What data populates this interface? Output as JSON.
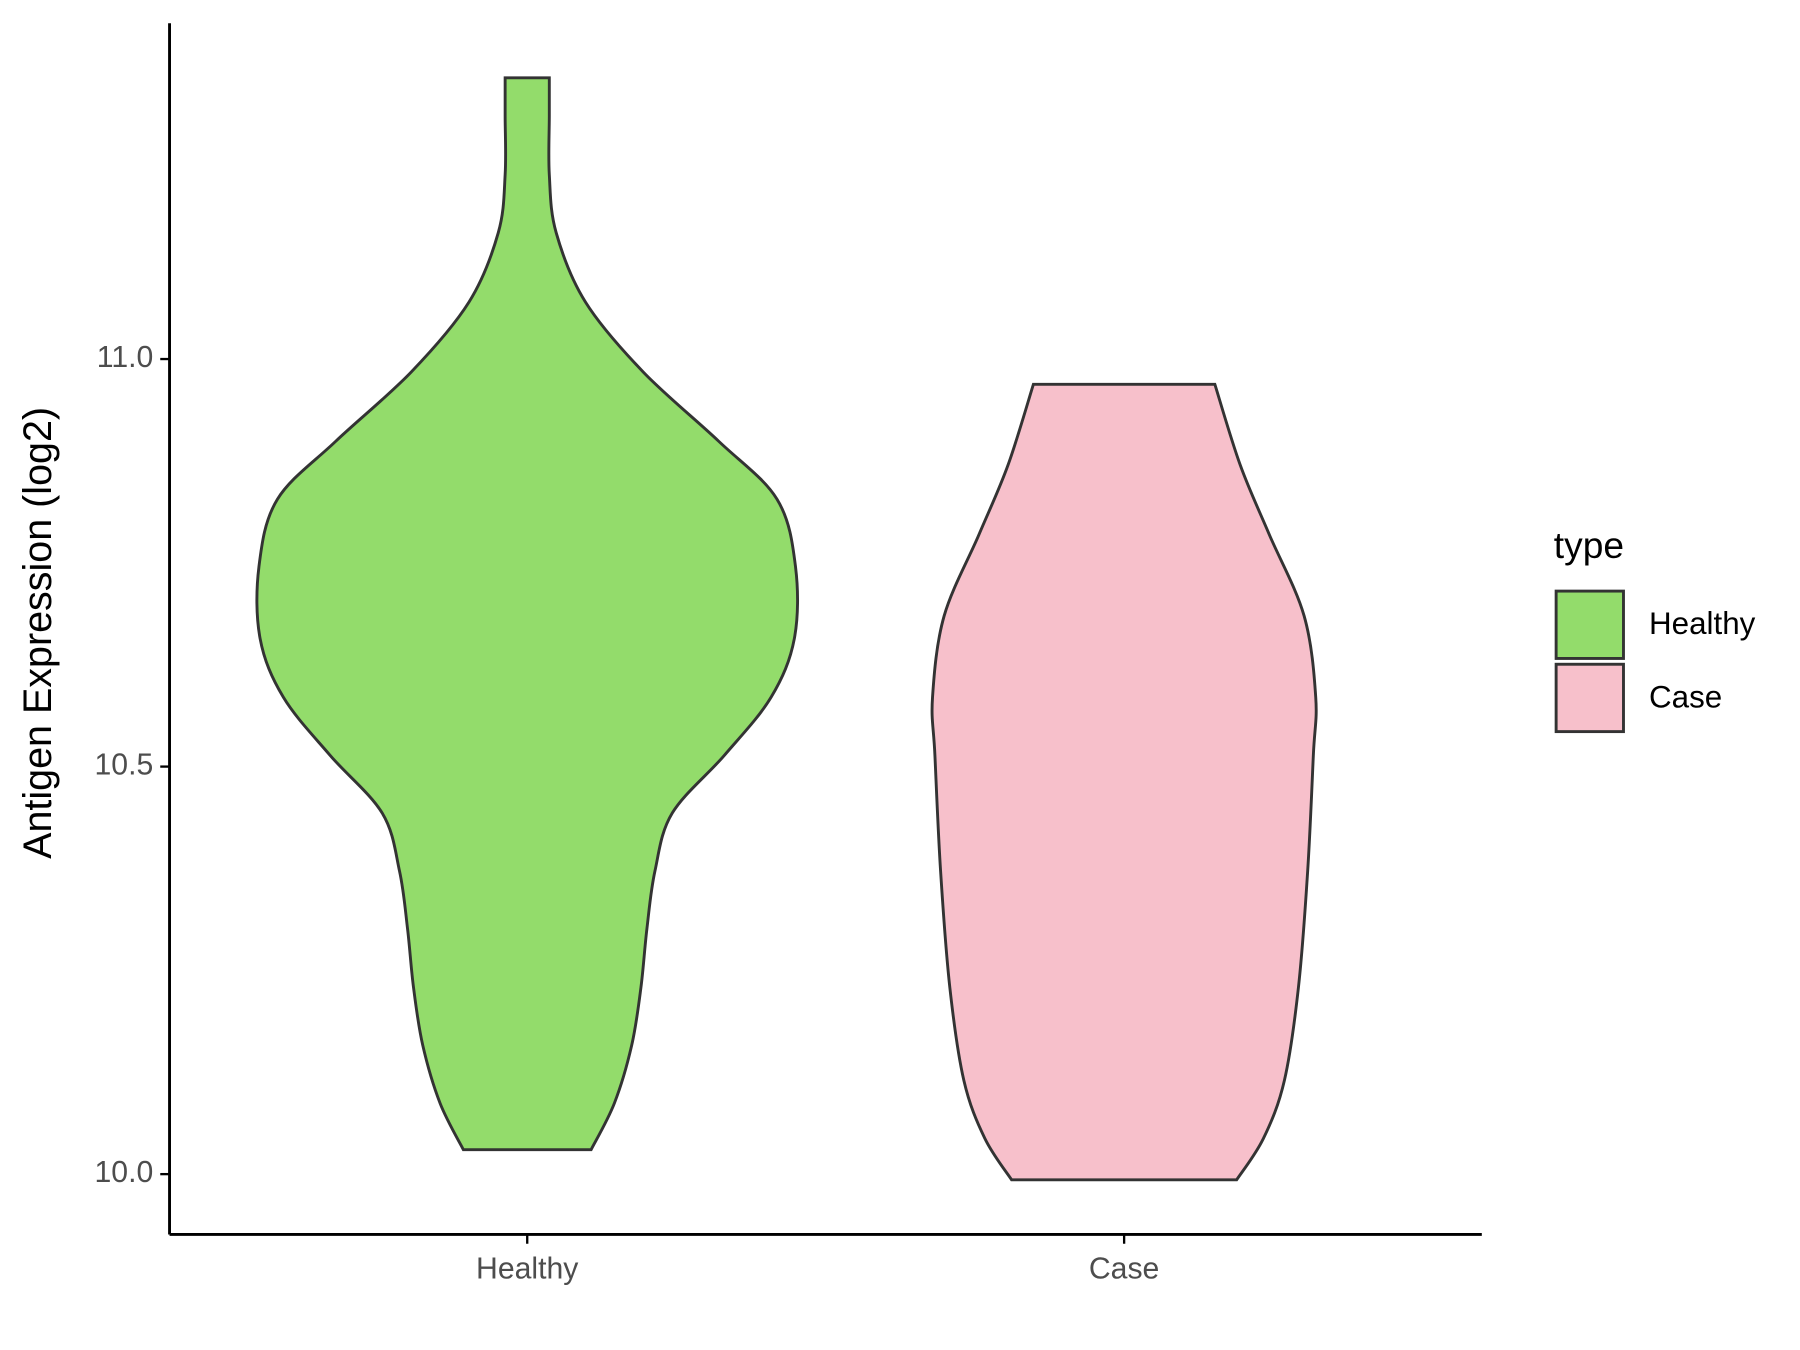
{
  "chart_data": {
    "type": "violin",
    "y_label": "Antigen Expression (log2)",
    "categories": [
      "Healthy",
      "Case"
    ],
    "series": [
      {
        "name": "Healthy",
        "color": "#93dc6b",
        "y": [
          10.03,
          10.087,
          10.158,
          10.229,
          10.301,
          10.372,
          10.443,
          10.514,
          10.585,
          10.657,
          10.745,
          10.828,
          10.899,
          10.984,
          11.07,
          11.155,
          11.226,
          11.298,
          11.345
        ],
        "widths": [
          0.214,
          0.292,
          0.35,
          0.381,
          0.401,
          0.428,
          0.486,
          0.661,
          0.817,
          0.895,
          0.899,
          0.837,
          0.642,
          0.389,
          0.195,
          0.097,
          0.074,
          0.074,
          0.074
        ]
      },
      {
        "name": "Case",
        "color": "#f7c0cb",
        "y": [
          9.993,
          10.044,
          10.115,
          10.229,
          10.372,
          10.514,
          10.585,
          10.685,
          10.785,
          10.87,
          10.969
        ],
        "widths": [
          0.377,
          0.467,
          0.537,
          0.584,
          0.615,
          0.634,
          0.642,
          0.603,
          0.486,
          0.389,
          0.304
        ]
      }
    ],
    "ylim": [
      9.926,
      11.412
    ],
    "yticks": [
      {
        "value": 10,
        "label": "10.0"
      },
      {
        "value": 10.5,
        "label": "10.5"
      },
      {
        "value": 11,
        "label": "11.0"
      }
    ],
    "legend_title": "type",
    "legend": "right"
  }
}
